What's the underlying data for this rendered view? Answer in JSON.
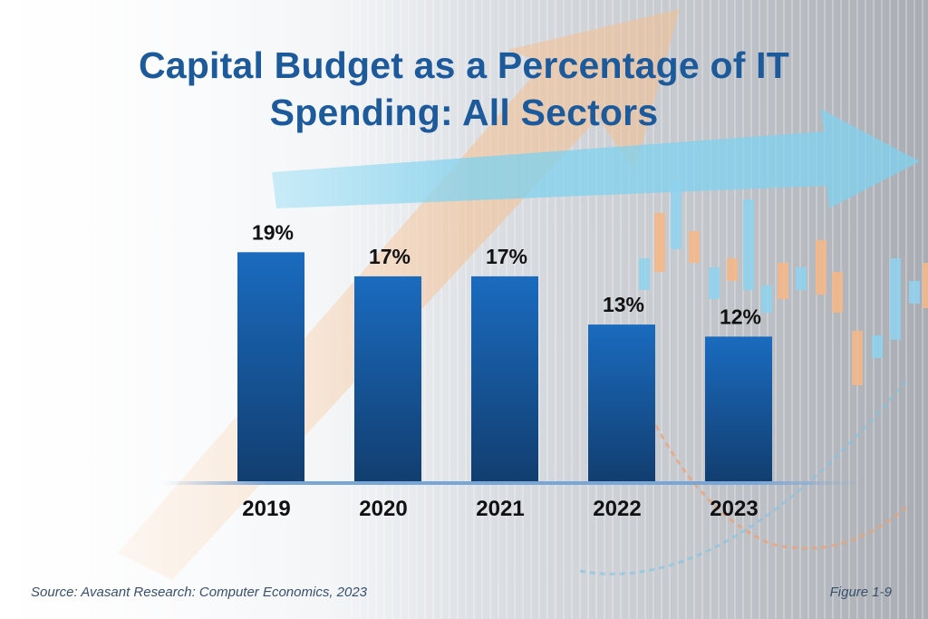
{
  "chart_data": {
    "type": "bar",
    "title": "Capital Budget as a Percentage of IT Spending: All Sectors",
    "title_lines": [
      "Capital Budget as a Percentage of IT",
      "Spending: All Sectors"
    ],
    "categories": [
      "2019",
      "2020",
      "2021",
      "2022",
      "2023"
    ],
    "values": [
      19,
      17,
      17,
      13,
      12
    ],
    "value_labels": [
      "19%",
      "17%",
      "17%",
      "13%",
      "12%"
    ],
    "unit": "%",
    "xlabel": "",
    "ylabel": "",
    "ylim": [
      0,
      20
    ],
    "grid": false,
    "legend": null,
    "colors": {
      "bar_top": "#1a6bbf",
      "bar_bottom": "#123e70",
      "baseline": "#7aa6d6",
      "title": "#1d5a9c",
      "label": "#111111"
    }
  },
  "footer": {
    "source": "Source: Avasant Research: Computer Economics, 2023",
    "figure": "Figure 1-9"
  }
}
